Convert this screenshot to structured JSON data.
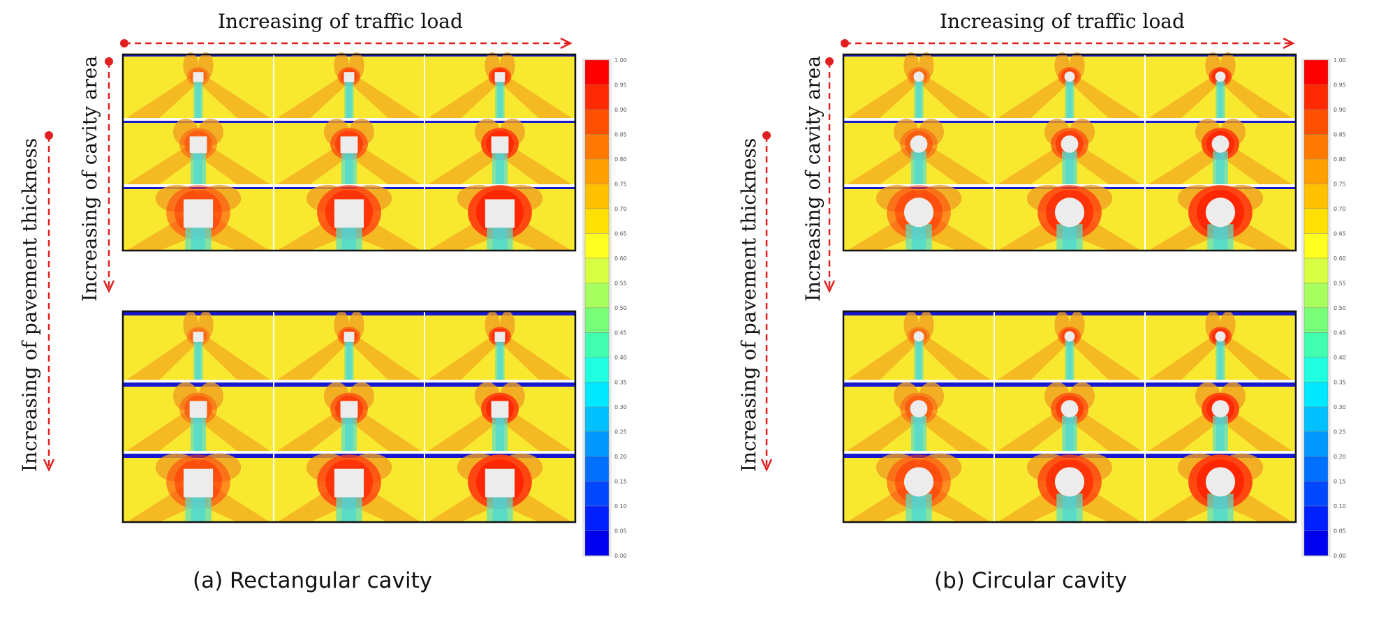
{
  "panels": [
    {
      "id": "a",
      "shape": "rect",
      "caption": "(a)  Rectangular  cavity",
      "top_label": "Increasing of traffic load",
      "cavity_label": "Increasing of cavity area",
      "thickness_label": "Increasing of pavement thickness"
    },
    {
      "id": "b",
      "shape": "circle",
      "caption": "(b)  Circular  cavity",
      "top_label": "Increasing of traffic load",
      "cavity_label": "Increasing of cavity area",
      "thickness_label": "Increasing of pavement thickness"
    }
  ],
  "colorbar": {
    "ticks": [
      "1.00",
      "0.95",
      "0.90",
      "0.85",
      "0.80",
      "0.75",
      "0.70",
      "0.65",
      "0.60",
      "0.55",
      "0.50",
      "0.45",
      "0.40",
      "0.35",
      "0.30",
      "0.25",
      "0.20",
      "0.15",
      "0.10",
      "0.05",
      "0.00"
    ],
    "colors": [
      "#ff0000",
      "#ff2a00",
      "#ff5000",
      "#ff7800",
      "#ffa000",
      "#ffc000",
      "#ffe000",
      "#ffff20",
      "#d8ff40",
      "#a8ff60",
      "#78ff78",
      "#40ffb0",
      "#20ffe0",
      "#00e8ff",
      "#00c0ff",
      "#0098ff",
      "#0070ff",
      "#0048ff",
      "#0020ff",
      "#0000f0"
    ]
  },
  "colors": {
    "background_field": "#f8e830",
    "arrow": "#e02020",
    "plate": "#1818d0"
  }
}
